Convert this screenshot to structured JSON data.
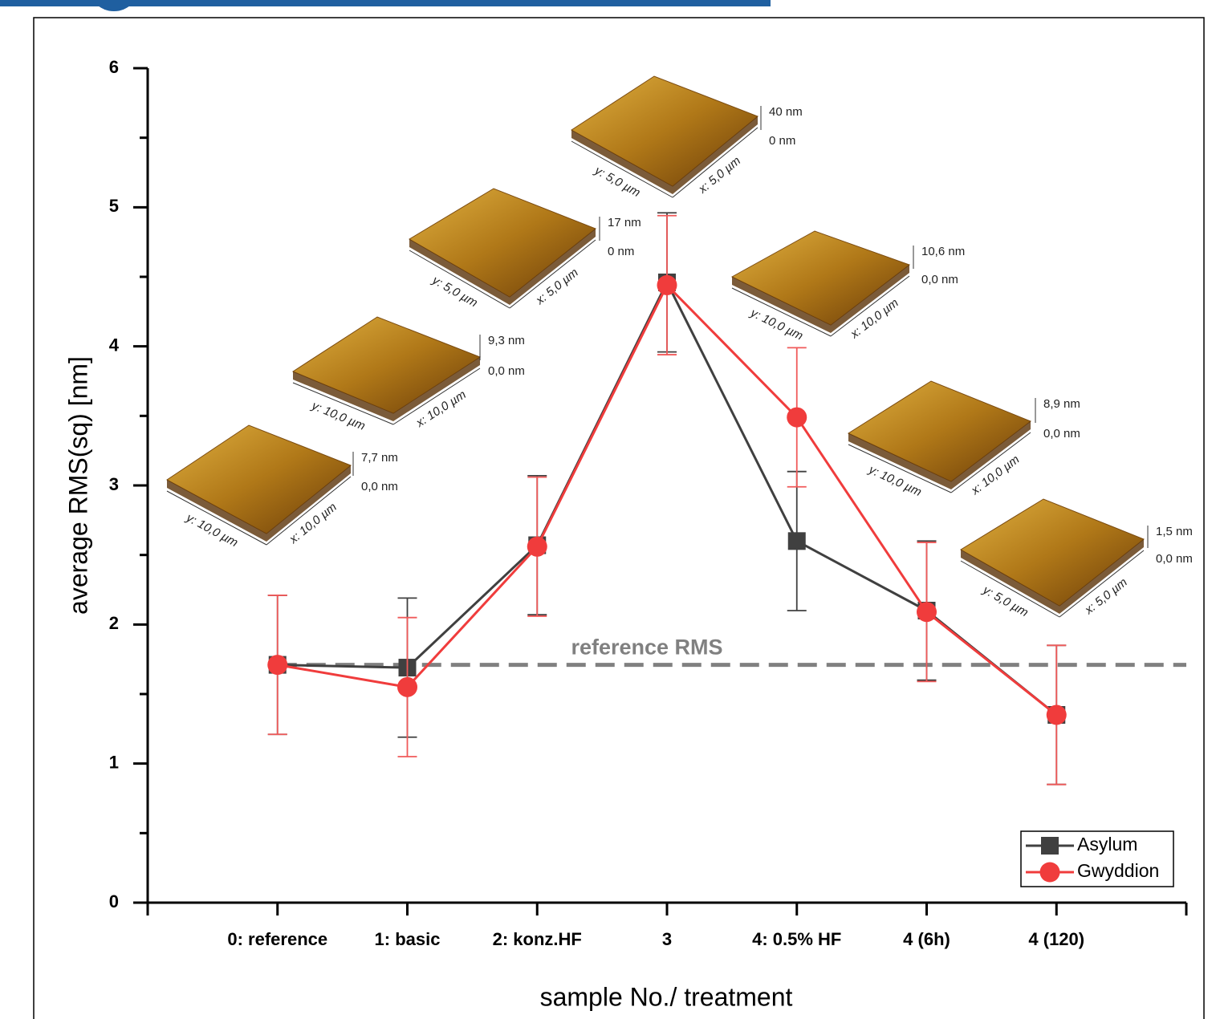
{
  "chart_data": {
    "type": "line",
    "xlabel": "sample No./ treatment",
    "ylabel": "average RMS(sq) [nm]",
    "categories": [
      "0: reference",
      "1: basic",
      "2: konz.HF",
      "3",
      "4: 0.5% HF",
      "4 (6h)",
      "4 (120)"
    ],
    "ylim": [
      0,
      6
    ],
    "yticks": [
      0,
      1,
      2,
      3,
      4,
      5,
      6
    ],
    "yminorticks": [
      0.5,
      1.5,
      2.5,
      3.5,
      4.5,
      5.5
    ],
    "series": [
      {
        "name": "Asylum",
        "color": "#404040",
        "marker": "square",
        "values": [
          1.71,
          1.69,
          2.57,
          4.46,
          2.6,
          2.1,
          1.35
        ],
        "errors": [
          0.5,
          0.5,
          0.5,
          0.5,
          0.5,
          0.5,
          0.5
        ]
      },
      {
        "name": "Gwyddion",
        "color": "#f03c3c",
        "marker": "circle",
        "values": [
          1.71,
          1.55,
          2.56,
          4.44,
          3.49,
          2.09,
          1.35
        ],
        "errors": [
          0.5,
          0.5,
          0.5,
          0.5,
          0.5,
          0.5,
          0.5
        ]
      }
    ],
    "reference_line": {
      "value": 1.71,
      "label": "reference RMS",
      "color": "#808080"
    },
    "legend": "lower right",
    "insets": [
      {
        "z_max": "7,7 nm",
        "z_min": "0,0 nm",
        "y_size": "y: 10,0 µm",
        "x_size": "x: 10,0 µm"
      },
      {
        "z_max": "9,3 nm",
        "z_min": "0,0 nm",
        "y_size": "y: 10,0 µm",
        "x_size": "x: 10,0 µm"
      },
      {
        "z_max": "17 nm",
        "z_min": "0 nm",
        "y_size": "y: 5,0 µm",
        "x_size": "x: 5,0 µm"
      },
      {
        "z_max": "40 nm",
        "z_min": "0 nm",
        "y_size": "y: 5,0 µm",
        "x_size": "x: 5,0 µm"
      },
      {
        "z_max": "10,6 nm",
        "z_min": "0,0 nm",
        "y_size": "y: 10,0 µm",
        "x_size": "x: 10,0 µm"
      },
      {
        "z_max": "8,9 nm",
        "z_min": "0,0 nm",
        "y_size": "y: 10,0 µm",
        "x_size": "x: 10,0 µm"
      },
      {
        "z_max": "1,5 nm",
        "z_min": "0,0 nm",
        "y_size": "y: 5,0 µm",
        "x_size": "x: 5,0 µm"
      }
    ]
  }
}
